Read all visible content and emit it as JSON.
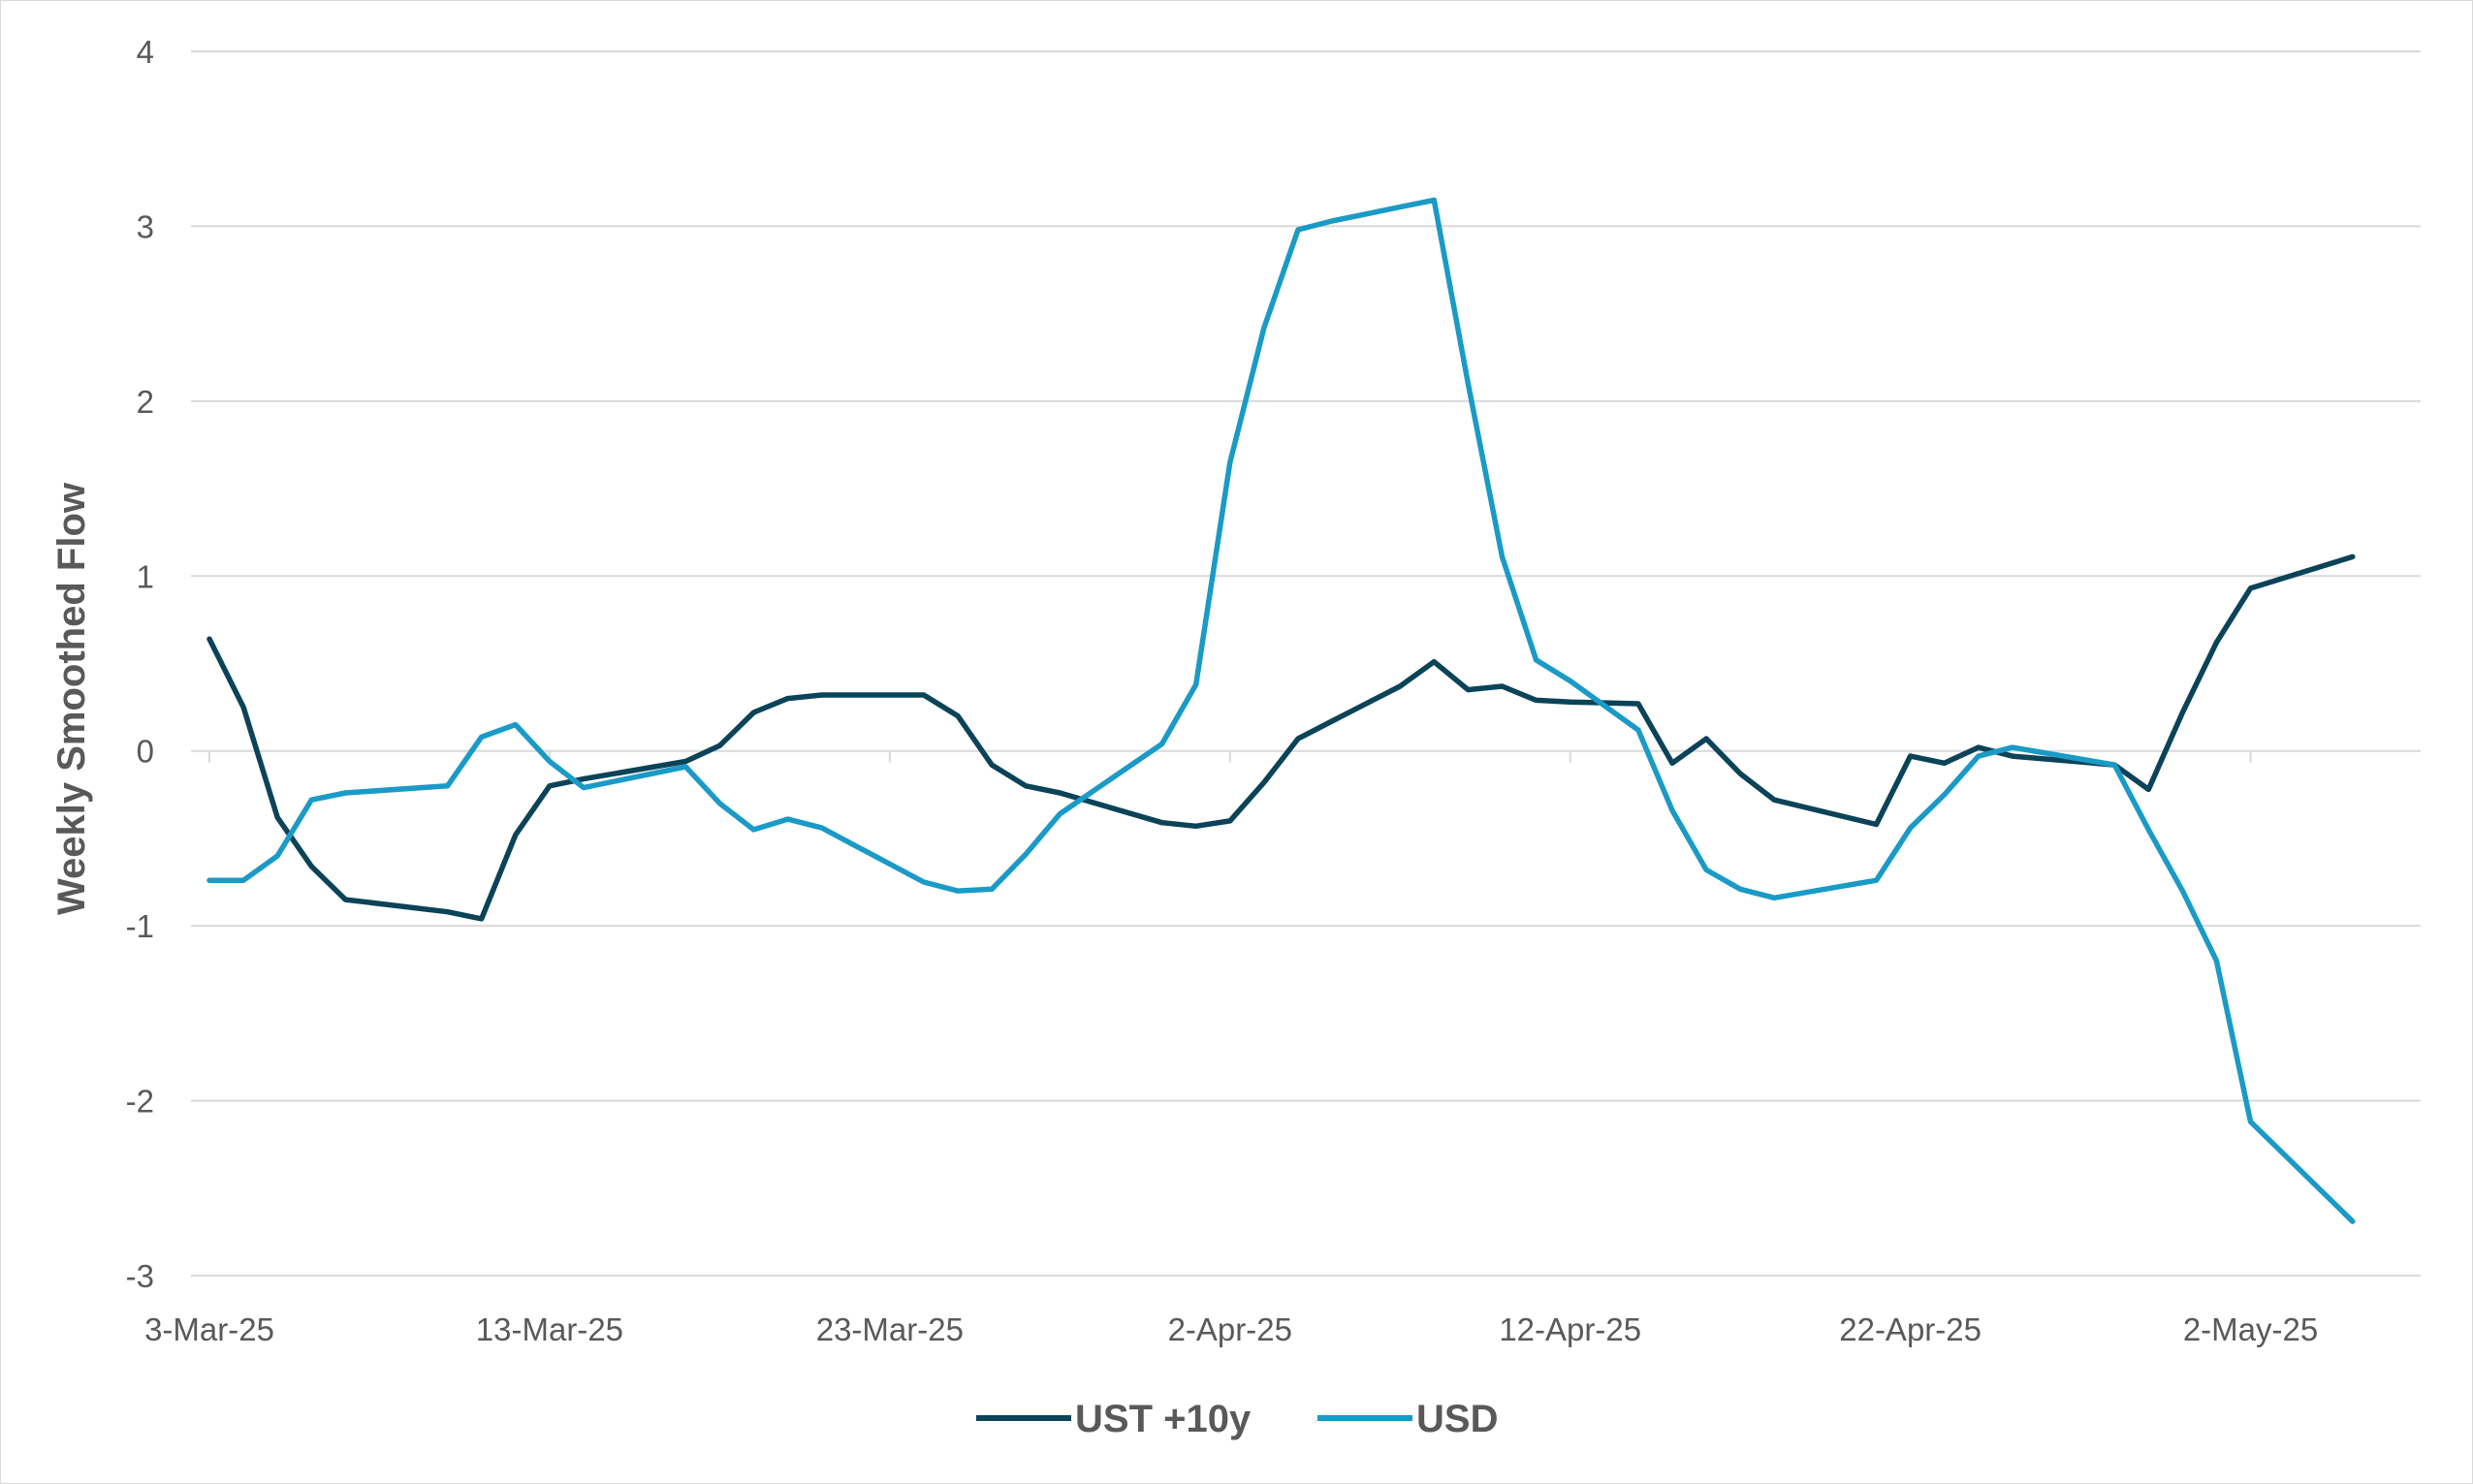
{
  "chart_data": {
    "type": "line",
    "ylabel": "Weekly Smoothed Flow",
    "xlabel": "",
    "ylim": [
      -3,
      4
    ],
    "yticks": [
      -3,
      -2,
      -1,
      0,
      1,
      2,
      3,
      4
    ],
    "x_tick_labels": [
      "3-Mar-25",
      "13-Mar-25",
      "23-Mar-25",
      "2-Apr-25",
      "12-Apr-25",
      "22-Apr-25",
      "2-May-25"
    ],
    "x_dates": [
      "2025-03-03",
      "2025-03-04",
      "2025-03-05",
      "2025-03-06",
      "2025-03-07",
      "2025-03-10",
      "2025-03-11",
      "2025-03-12",
      "2025-03-13",
      "2025-03-14",
      "2025-03-17",
      "2025-03-18",
      "2025-03-19",
      "2025-03-20",
      "2025-03-21",
      "2025-03-24",
      "2025-03-25",
      "2025-03-26",
      "2025-03-27",
      "2025-03-28",
      "2025-03-31",
      "2025-04-01",
      "2025-04-02",
      "2025-04-03",
      "2025-04-04",
      "2025-04-05",
      "2025-04-07",
      "2025-04-08",
      "2025-04-09",
      "2025-04-10",
      "2025-04-11",
      "2025-04-12",
      "2025-04-14",
      "2025-04-15",
      "2025-04-16",
      "2025-04-17",
      "2025-04-18",
      "2025-04-21",
      "2025-04-22",
      "2025-04-23",
      "2025-04-24",
      "2025-04-25",
      "2025-04-28",
      "2025-04-29",
      "2025-04-30",
      "2025-05-01",
      "2025-05-02",
      "2025-05-05"
    ],
    "series": [
      {
        "name": "UST +10y",
        "color": "#0b4358",
        "values": [
          0.64,
          0.25,
          -0.38,
          -0.66,
          -0.85,
          -0.92,
          -0.96,
          -0.48,
          -0.2,
          -0.16,
          -0.06,
          0.03,
          0.22,
          0.3,
          0.32,
          0.32,
          0.2,
          -0.08,
          -0.2,
          -0.24,
          -0.41,
          -0.43,
          -0.4,
          -0.18,
          0.07,
          0.17,
          0.37,
          0.51,
          0.35,
          0.37,
          0.29,
          0.28,
          0.27,
          -0.07,
          0.07,
          -0.13,
          -0.28,
          -0.42,
          -0.03,
          -0.07,
          0.02,
          -0.03,
          -0.08,
          -0.22,
          0.22,
          0.62,
          0.93,
          1.11
        ]
      },
      {
        "name": "USD",
        "color": "#1a9ac7",
        "values": [
          -0.74,
          -0.74,
          -0.6,
          -0.28,
          -0.24,
          -0.2,
          0.08,
          0.15,
          -0.06,
          -0.21,
          -0.09,
          -0.3,
          -0.45,
          -0.39,
          -0.44,
          -0.75,
          -0.8,
          -0.79,
          -0.59,
          -0.36,
          0.04,
          0.38,
          1.65,
          2.42,
          2.98,
          3.03,
          3.11,
          3.15,
          2.1,
          1.11,
          0.52,
          0.4,
          0.12,
          -0.34,
          -0.68,
          -0.79,
          -0.84,
          -0.74,
          -0.44,
          -0.25,
          -0.03,
          0.02,
          -0.08,
          -0.45,
          -0.8,
          -1.2,
          -2.12,
          -2.69
        ]
      }
    ],
    "grid": true,
    "legend_position": "bottom"
  }
}
